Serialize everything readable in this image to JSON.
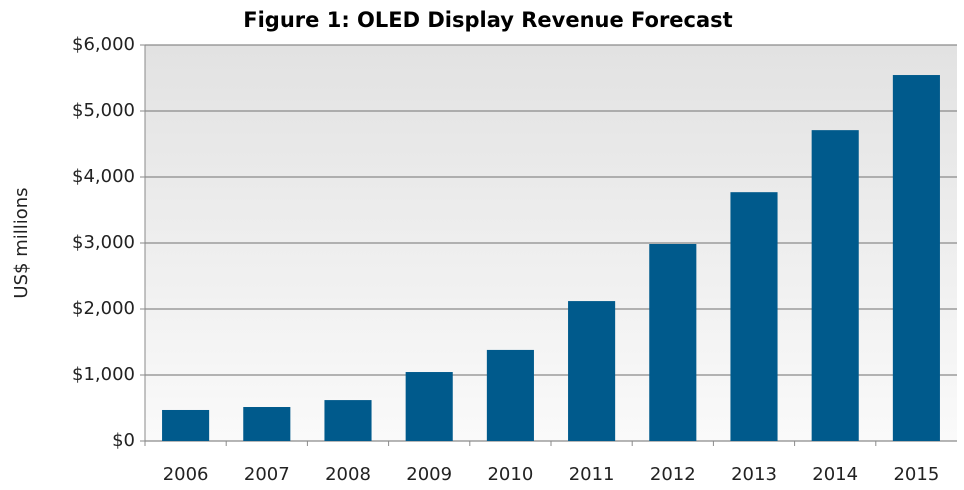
{
  "chart_data": {
    "type": "bar",
    "title": "Figure 1: OLED Display Revenue Forecast",
    "y_label": "US$ millions",
    "categories": [
      "2006",
      "2007",
      "2008",
      "2009",
      "2010",
      "2011",
      "2012",
      "2013",
      "2014",
      "2015"
    ],
    "values": [
      470,
      515,
      620,
      1045,
      1380,
      2120,
      2985,
      3770,
      4710,
      5545
    ],
    "color": "#005a8c",
    "ylim": [
      0,
      6000
    ],
    "yticks": [
      {
        "value": 0,
        "label": "$0"
      },
      {
        "value": 1000,
        "label": "$1,000"
      },
      {
        "value": 2000,
        "label": "$2,000"
      },
      {
        "value": 3000,
        "label": "$3,000"
      },
      {
        "value": 4000,
        "label": "$4,000"
      },
      {
        "value": 5000,
        "label": "$5,000"
      },
      {
        "value": 6000,
        "label": "$6,000"
      }
    ],
    "grid": true
  }
}
